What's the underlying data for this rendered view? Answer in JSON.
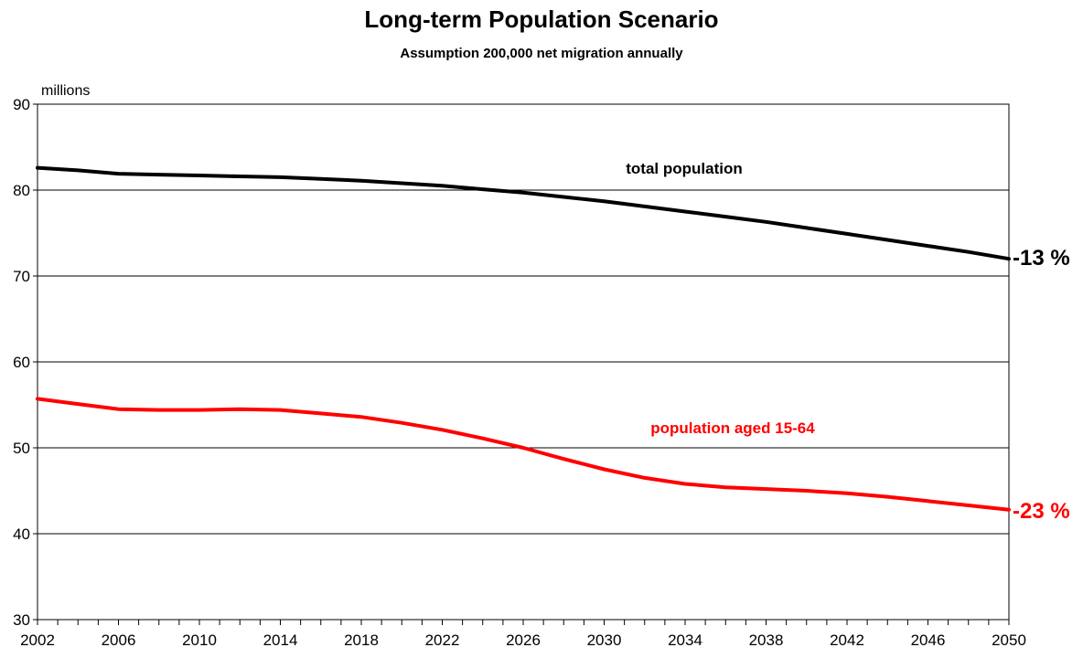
{
  "chart_data": {
    "type": "line",
    "title": "Long-term Population Scenario",
    "subtitle": "Assumption 200,000 net migration annually",
    "ylabel": "millions",
    "xlabel": "",
    "xlim": [
      2002,
      2050
    ],
    "ylim": [
      30,
      90
    ],
    "yticks": [
      30,
      40,
      50,
      60,
      70,
      80,
      90
    ],
    "xtick_labels": [
      2002,
      2006,
      2010,
      2014,
      2018,
      2022,
      2026,
      2030,
      2034,
      2038,
      2042,
      2046,
      2050
    ],
    "grid": "horizontal",
    "x": [
      2002,
      2004,
      2006,
      2008,
      2010,
      2012,
      2014,
      2016,
      2018,
      2020,
      2022,
      2024,
      2026,
      2028,
      2030,
      2032,
      2034,
      2036,
      2038,
      2040,
      2042,
      2044,
      2046,
      2048,
      2050
    ],
    "series": [
      {
        "name": "total population",
        "color": "#000000",
        "end_label": "-13 %",
        "values": [
          82.6,
          82.3,
          81.9,
          81.8,
          81.7,
          81.6,
          81.5,
          81.3,
          81.1,
          80.8,
          80.5,
          80.1,
          79.7,
          79.2,
          78.7,
          78.1,
          77.5,
          76.9,
          76.3,
          75.6,
          74.9,
          74.2,
          73.5,
          72.8,
          72.0
        ]
      },
      {
        "name": "population aged 15-64",
        "color": "#ff0000",
        "end_label": "-23 %",
        "values": [
          55.7,
          55.1,
          54.5,
          54.4,
          54.4,
          54.5,
          54.4,
          54.0,
          53.6,
          52.9,
          52.1,
          51.1,
          50.0,
          48.7,
          47.5,
          46.5,
          45.8,
          45.4,
          45.2,
          45.0,
          44.7,
          44.3,
          43.8,
          43.3,
          42.8
        ]
      }
    ]
  }
}
